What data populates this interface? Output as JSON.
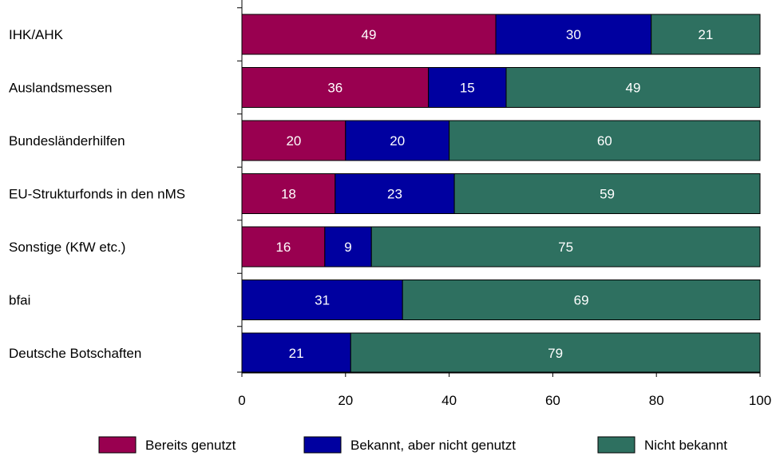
{
  "chart_data": {
    "type": "bar",
    "orientation": "horizontal",
    "stacked": true,
    "categories": [
      "IHK/AHK",
      "Auslandsmessen",
      "Bundesländerhilfen",
      "EU-Strukturfonds in den nMS",
      "Sonstige (KfW etc.)",
      "bfai",
      "Deutsche Botschaften"
    ],
    "series": [
      {
        "name": "Bereits genutzt",
        "color": "#990050",
        "values": [
          49,
          36,
          20,
          18,
          16,
          0,
          0
        ]
      },
      {
        "name": "Bekannt, aber nicht genutzt",
        "color": "#0000A0",
        "values": [
          30,
          15,
          20,
          23,
          9,
          31,
          21
        ]
      },
      {
        "name": "Nicht bekannt",
        "color": "#2E7060",
        "values": [
          21,
          49,
          60,
          59,
          75,
          69,
          79
        ]
      }
    ],
    "xlim": [
      0,
      100
    ],
    "xticks": [
      "0",
      "20",
      "40",
      "60",
      "80",
      "100"
    ],
    "grid": false,
    "legend_position": "bottom"
  }
}
